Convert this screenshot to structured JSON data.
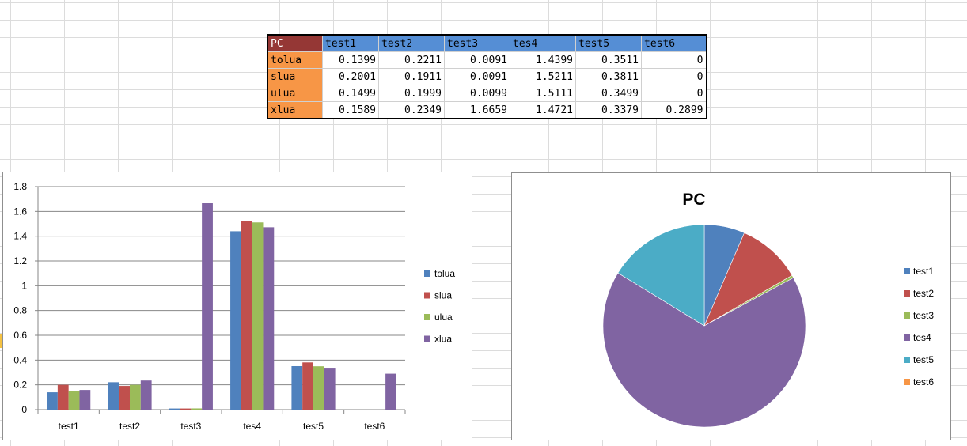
{
  "table": {
    "corner": "PC",
    "headers": [
      "test1",
      "test2",
      "test3",
      "tes4",
      "test5",
      "test6"
    ],
    "rows": [
      {
        "name": "tolua",
        "values": [
          "0.1399",
          "0.2211",
          "0.0091",
          "1.4399",
          "0.3511",
          "0"
        ]
      },
      {
        "name": "slua",
        "values": [
          "0.2001",
          "0.1911",
          "0.0091",
          "1.5211",
          "0.3811",
          "0"
        ]
      },
      {
        "name": "ulua",
        "values": [
          "0.1499",
          "0.1999",
          "0.0099",
          "1.5111",
          "0.3499",
          "0"
        ]
      },
      {
        "name": "xlua",
        "values": [
          "0.1589",
          "0.2349",
          "1.6659",
          "1.4721",
          "0.3379",
          "0.2899"
        ]
      }
    ]
  },
  "chart_data": [
    {
      "type": "bar",
      "title": "",
      "xlabel": "",
      "ylabel": "",
      "categories": [
        "test1",
        "test2",
        "test3",
        "tes4",
        "test5",
        "test6"
      ],
      "series": [
        {
          "name": "tolua",
          "color": "#4f81bd",
          "values": [
            0.1399,
            0.2211,
            0.0091,
            1.4399,
            0.3511,
            0
          ]
        },
        {
          "name": "slua",
          "color": "#c0504d",
          "values": [
            0.2001,
            0.1911,
            0.0091,
            1.5211,
            0.3811,
            0
          ]
        },
        {
          "name": "ulua",
          "color": "#9bbb59",
          "values": [
            0.1499,
            0.1999,
            0.0099,
            1.5111,
            0.3499,
            0
          ]
        },
        {
          "name": "xlua",
          "color": "#8064a2",
          "values": [
            0.1589,
            0.2349,
            1.6659,
            1.4721,
            0.3379,
            0.2899
          ]
        }
      ],
      "ylim": [
        0,
        1.8
      ],
      "yticks": [
        "0",
        "0.2",
        "0.4",
        "0.6",
        "0.8",
        "1",
        "1.2",
        "1.4",
        "1.6",
        "1.8"
      ],
      "grid": true,
      "legend": "right"
    },
    {
      "type": "pie",
      "title": "PC",
      "labels": [
        "test1",
        "test2",
        "test3",
        "tes4",
        "test5",
        "test6"
      ],
      "values": [
        0.1399,
        0.2211,
        0.0091,
        1.4399,
        0.3511,
        0
      ],
      "colors": [
        "#4f81bd",
        "#c0504d",
        "#9bbb59",
        "#8064a2",
        "#4bacc6",
        "#f79646"
      ],
      "legend": "right"
    }
  ]
}
